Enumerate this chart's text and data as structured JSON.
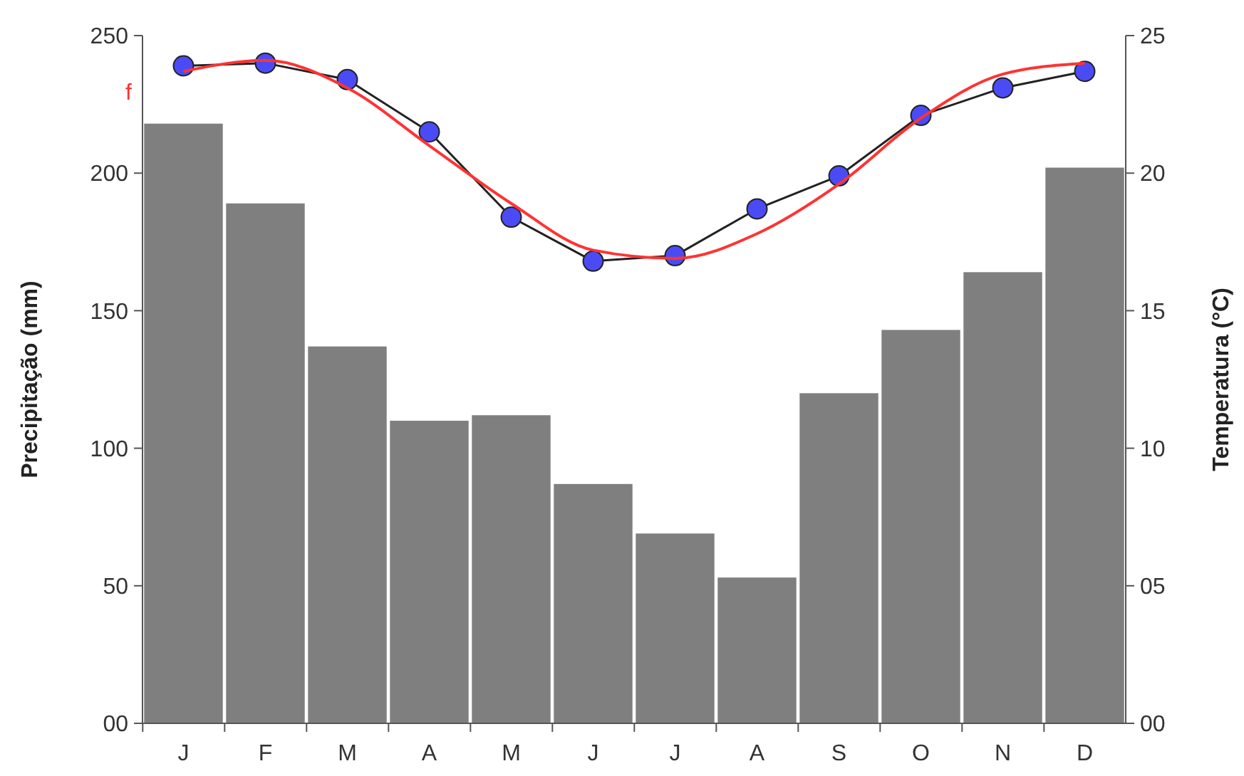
{
  "chart_data": {
    "type": "bar",
    "ylabel": "Precipitação (mm)",
    "y2label": "Temperatura (°C)",
    "categories": [
      "J",
      "F",
      "M",
      "A",
      "M",
      "J",
      "J",
      "A",
      "S",
      "O",
      "N",
      "D"
    ],
    "series": [
      {
        "color": "#7f7f7f",
        "values": [
          218,
          189,
          137,
          110,
          112,
          87,
          69,
          53,
          120,
          143,
          164,
          202
        ]
      },
      {
        "type": "line",
        "axis": "y2",
        "color": "#4b4bf5",
        "marker": "circle",
        "values": [
          23.9,
          24.0,
          23.4,
          21.5,
          18.4,
          16.8,
          17.0,
          18.7,
          19.9,
          22.1,
          23.1,
          23.7
        ]
      },
      {
        "type": "line",
        "axis": "y2",
        "color": "#ff3333",
        "marker": "none",
        "values": [
          23.7,
          24.1,
          23.1,
          21.0,
          18.9,
          17.2,
          16.9,
          17.8,
          19.6,
          22.0,
          23.6,
          24.0
        ]
      }
    ],
    "ylim": [
      0,
      250
    ],
    "yticks": [
      {
        "value": 0,
        "label": "00"
      },
      50,
      100,
      150,
      200,
      250
    ],
    "y2lim": [
      0,
      25
    ],
    "y2ticks": [
      {
        "value": 0,
        "label": "00"
      },
      {
        "value": 5,
        "label": "05"
      },
      10,
      15,
      20,
      25
    ],
    "annotations": [
      "f"
    ],
    "grid": false
  }
}
